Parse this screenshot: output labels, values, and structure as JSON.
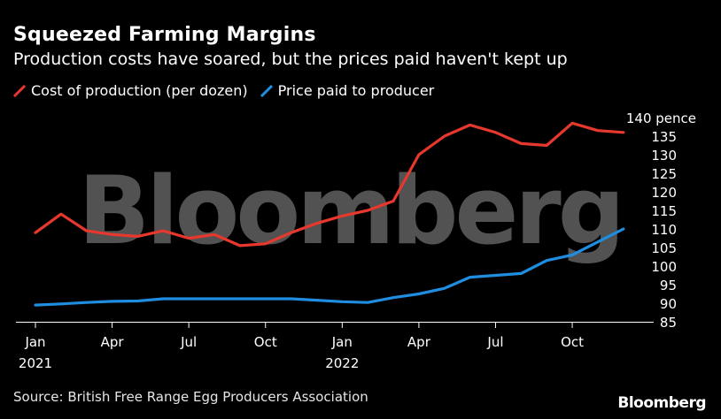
{
  "title": "Squeezed Farming Margins",
  "subtitle": "Production costs have soared, but the prices paid haven't kept up",
  "source": "Source: British Free Range Egg Producers Association",
  "watermark": "Bloomberg",
  "brand": "Bloomberg",
  "colors": {
    "cost": "#e8382d",
    "price": "#1f8de0",
    "background": "#000000"
  },
  "chart_data": {
    "type": "line",
    "x_labels": [
      "Jan",
      "Apr",
      "Jul",
      "Oct",
      "Jan",
      "Apr",
      "Jul",
      "Oct"
    ],
    "x_years": [
      "2021",
      "",
      "",
      "",
      "2022",
      "",
      "",
      ""
    ],
    "x": [
      "2021-01",
      "2021-02",
      "2021-03",
      "2021-04",
      "2021-05",
      "2021-06",
      "2021-07",
      "2021-08",
      "2021-09",
      "2021-10",
      "2021-11",
      "2021-12",
      "2022-01",
      "2022-02",
      "2022-03",
      "2022-04",
      "2022-05",
      "2022-06",
      "2022-07",
      "2022-08",
      "2022-09",
      "2022-10",
      "2022-11",
      "2022-12"
    ],
    "series": [
      {
        "name": "Cost of production (per dozen)",
        "color": "#e8382d",
        "values": [
          109,
          114,
          109.5,
          108.5,
          108,
          109.5,
          107.5,
          108.5,
          105.5,
          106,
          109,
          111.5,
          113.5,
          115,
          117.5,
          130,
          135,
          138,
          136,
          133,
          132.5,
          138.5,
          136.5,
          136
        ]
      },
      {
        "name": "Price paid to producer",
        "color": "#1f8de0",
        "values": [
          89.5,
          89.8,
          90.2,
          90.5,
          90.6,
          91.2,
          91.2,
          91.2,
          91.2,
          91.2,
          91.2,
          90.8,
          90.4,
          90.2,
          91.5,
          92.5,
          94,
          97,
          97.5,
          98,
          101.5,
          103,
          106.5,
          110
        ]
      }
    ],
    "yticks": [
      85,
      90,
      95,
      100,
      105,
      110,
      115,
      120,
      125,
      130,
      135,
      140
    ],
    "ytick_top_label": "140 pence",
    "ylim": [
      85,
      140
    ],
    "ylabel": "",
    "xlabel": "",
    "grid": false,
    "legend": "top-left"
  }
}
